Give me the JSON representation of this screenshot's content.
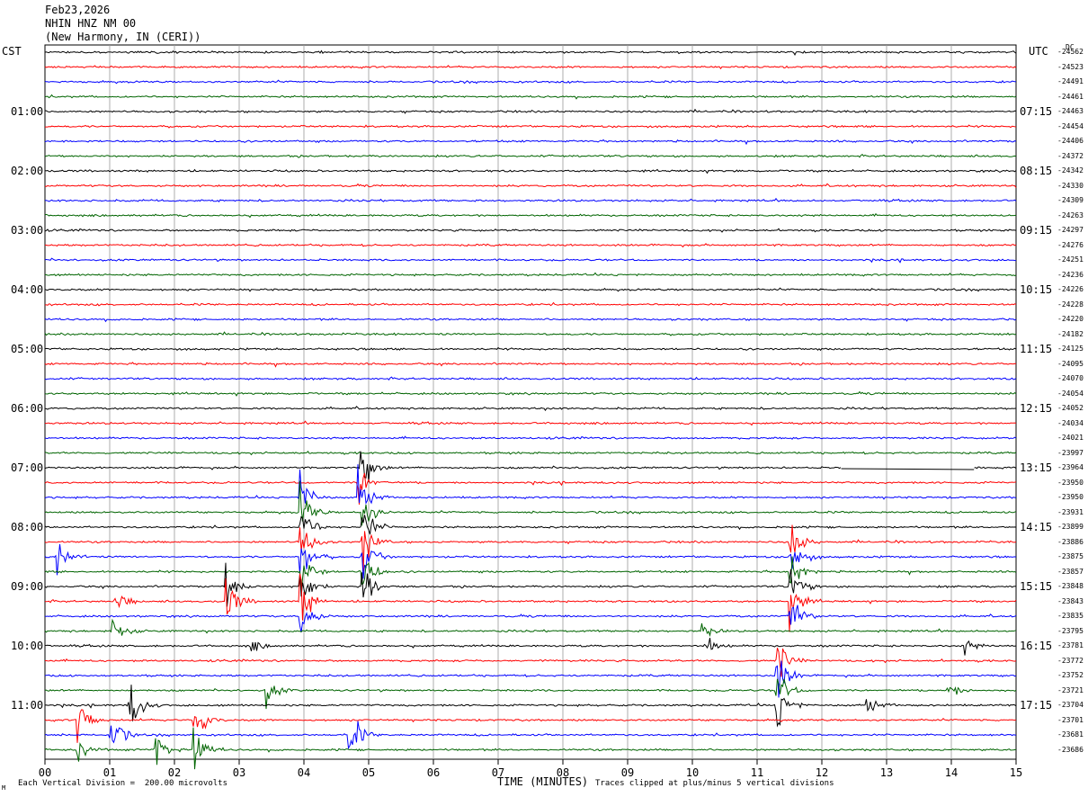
{
  "header": {
    "date": "Feb23,2026",
    "station": "NHIN HNZ NM 00",
    "location": "(New Harmony, IN (CERI))"
  },
  "left_tz": "CST",
  "right_tz": "UTC",
  "dc_label": "DC",
  "footer": {
    "scale": "Each Vertical Division =  200.00 microvolts",
    "clip": "Traces clipped at plus/minus 5 vertical divisions",
    "corner": "M"
  },
  "chart_data": {
    "type": "line",
    "subtype": "helicorder-seismogram",
    "xlabel": "TIME (MINUTES)",
    "x_ticks": [
      "00",
      "01",
      "02",
      "03",
      "04",
      "05",
      "06",
      "07",
      "08",
      "09",
      "10",
      "11",
      "12",
      "13",
      "14",
      "15"
    ],
    "xlim": [
      0,
      15
    ],
    "grid": "vertical lines every minute",
    "trace_colors": [
      "#000000",
      "#ff0000",
      "#0000ff",
      "#006400"
    ],
    "left_hour_labels": [
      "01:00",
      "02:00",
      "03:00",
      "04:00",
      "05:00",
      "06:00",
      "07:00",
      "08:00",
      "09:00",
      "10:00",
      "11:00"
    ],
    "right_hour_labels": [
      "07:15",
      "08:15",
      "09:15",
      "10:15",
      "11:15",
      "12:15",
      "13:15",
      "14:15",
      "15:15",
      "16:15",
      "17:15"
    ],
    "dc_offsets": [
      -24562,
      -24523,
      -24491,
      -24461,
      -24463,
      -24454,
      -24406,
      -24372,
      -24342,
      -24330,
      -24309,
      -24263,
      -24297,
      -24276,
      -24251,
      -24236,
      -24226,
      -24228,
      -24220,
      -24182,
      -24125,
      -24095,
      -24070,
      -24054,
      -24052,
      -24034,
      -24021,
      -23997,
      -23964,
      -23950,
      -23950,
      -23931,
      -23899,
      -23886,
      -23875,
      -23857,
      -23848,
      -23843,
      -23835,
      -23795,
      -23781,
      -23772,
      -23752,
      -23721,
      -23704,
      -23701,
      -23681,
      -23686
    ],
    "events": [
      {
        "trace": 28,
        "minute": 4.88,
        "amplitude": 5
      },
      {
        "trace": 29,
        "minute": 4.85,
        "amplitude": 5
      },
      {
        "trace": 30,
        "minute": 4.85,
        "amplitude": 5
      },
      {
        "trace": 31,
        "minute": 4.9,
        "amplitude": 5
      },
      {
        "trace": 32,
        "minute": 4.9,
        "amplitude": 5
      },
      {
        "trace": 33,
        "minute": 4.9,
        "amplitude": 5
      },
      {
        "trace": 34,
        "minute": 4.9,
        "amplitude": 5
      },
      {
        "trace": 35,
        "minute": 4.9,
        "amplitude": 5
      },
      {
        "trace": 36,
        "minute": 4.9,
        "amplitude": 5
      },
      {
        "trace": 30,
        "minute": 3.95,
        "amplitude": 5
      },
      {
        "trace": 31,
        "minute": 3.95,
        "amplitude": 5
      },
      {
        "trace": 32,
        "minute": 3.95,
        "amplitude": 5
      },
      {
        "trace": 33,
        "minute": 3.95,
        "amplitude": 5
      },
      {
        "trace": 34,
        "minute": 3.95,
        "amplitude": 5
      },
      {
        "trace": 35,
        "minute": 3.95,
        "amplitude": 5
      },
      {
        "trace": 36,
        "minute": 3.95,
        "amplitude": 5
      },
      {
        "trace": 37,
        "minute": 3.95,
        "amplitude": 5
      },
      {
        "trace": 38,
        "minute": 3.95,
        "amplitude": 5
      },
      {
        "trace": 33,
        "minute": 11.5,
        "amplitude": 5
      },
      {
        "trace": 34,
        "minute": 11.5,
        "amplitude": 5
      },
      {
        "trace": 35,
        "minute": 11.5,
        "amplitude": 5
      },
      {
        "trace": 36,
        "minute": 11.5,
        "amplitude": 5
      },
      {
        "trace": 37,
        "minute": 11.5,
        "amplitude": 5
      },
      {
        "trace": 38,
        "minute": 11.5,
        "amplitude": 5
      },
      {
        "trace": 41,
        "minute": 11.3,
        "amplitude": 5
      },
      {
        "trace": 42,
        "minute": 11.3,
        "amplitude": 5
      },
      {
        "trace": 43,
        "minute": 11.3,
        "amplitude": 5
      },
      {
        "trace": 44,
        "minute": 11.3,
        "amplitude": 5
      },
      {
        "trace": 37,
        "minute": 2.8,
        "amplitude": 5
      },
      {
        "trace": 36,
        "minute": 2.8,
        "amplitude": 5
      },
      {
        "trace": 39,
        "minute": 1.05,
        "amplitude": 3
      },
      {
        "trace": 37,
        "minute": 1.1,
        "amplitude": 2
      },
      {
        "trace": 34,
        "minute": 0.2,
        "amplitude": 3
      },
      {
        "trace": 43,
        "minute": 3.4,
        "amplitude": 3
      },
      {
        "trace": 43,
        "minute": 13.95,
        "amplitude": 2
      },
      {
        "trace": 44,
        "minute": 12.7,
        "amplitude": 2
      },
      {
        "trace": 40,
        "minute": 10.2,
        "amplitude": 2
      },
      {
        "trace": 40,
        "minute": 14.2,
        "amplitude": 1.5
      },
      {
        "trace": 40,
        "minute": 3.15,
        "amplitude": 1.5
      },
      {
        "trace": 39,
        "minute": 10.15,
        "amplitude": 1.5
      },
      {
        "trace": 44,
        "minute": 1.3,
        "amplitude": 5
      },
      {
        "trace": 45,
        "minute": 0.5,
        "amplitude": 5
      },
      {
        "trace": 45,
        "minute": 2.3,
        "amplitude": 5
      },
      {
        "trace": 46,
        "minute": 1.0,
        "amplitude": 5
      },
      {
        "trace": 46,
        "minute": 4.7,
        "amplitude": 5
      },
      {
        "trace": 47,
        "minute": 1.7,
        "amplitude": 5
      },
      {
        "trace": 47,
        "minute": 2.3,
        "amplitude": 5
      },
      {
        "trace": 47,
        "minute": 0.5,
        "amplitude": 2
      }
    ],
    "gaps": [
      {
        "trace": 28,
        "start_minute": 12.3,
        "end_minute": 14.35
      }
    ]
  }
}
